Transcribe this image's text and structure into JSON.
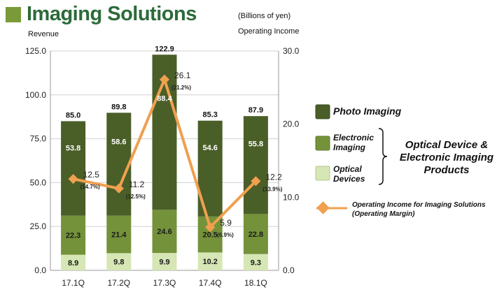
{
  "title": "Imaging Solutions",
  "units_note": "(Billions of yen)",
  "left_axis_label": "Revenue",
  "right_axis_label": "Operating Income",
  "colors": {
    "title": "#2c6b3a",
    "photo_imaging": "#4a5e28",
    "electronic_imaging": "#74923a",
    "optical_devices": "#d6e6b4",
    "operating_income": "#f0a050"
  },
  "legend": {
    "photo_imaging": "Photo Imaging",
    "electronic_imaging_line1": "Electronic",
    "electronic_imaging_line2": "Imaging",
    "optical_devices_line1": "Optical",
    "optical_devices_line2": "Devices",
    "group_line1": "Optical Device &",
    "group_line2": "Electronic Imaging",
    "group_line3": "Products",
    "op_line1": "Operating Income for Imaging Solutions",
    "op_line2": "(Operating Margin)"
  },
  "chart_data": {
    "type": "bar",
    "stacked": true,
    "categories": [
      "17.1Q",
      "17.2Q",
      "17.3Q",
      "17.4Q",
      "18.1Q"
    ],
    "series": [
      {
        "name": "Optical Devices",
        "values": [
          8.9,
          9.8,
          9.9,
          10.2,
          9.3
        ]
      },
      {
        "name": "Electronic Imaging",
        "values": [
          22.3,
          21.4,
          24.6,
          20.5,
          22.8
        ]
      },
      {
        "name": "Photo Imaging",
        "values": [
          53.8,
          58.6,
          88.4,
          54.6,
          55.8
        ]
      }
    ],
    "totals": [
      85.0,
      89.8,
      122.9,
      85.3,
      87.9
    ],
    "totals_labels": [
      "85.0",
      "89.8",
      "122.9",
      "85.3",
      "87.9"
    ],
    "line_series": {
      "name": "Operating Income for Imaging Solutions",
      "values": [
        12.5,
        11.2,
        26.1,
        5.9,
        12.2
      ],
      "labels": [
        "12.5",
        "11.2",
        "26.1",
        "5.9",
        "12.2"
      ],
      "margins": [
        "(14.7%)",
        "(12.5%)",
        "(21.2%)",
        "(6.9%)",
        "(13.9%)"
      ]
    },
    "y_left": {
      "min": 0,
      "max": 125,
      "ticks": [
        "0.0",
        "25.0",
        "50.0",
        "75.0",
        "100.0",
        "125.0"
      ]
    },
    "y_right": {
      "min": 0,
      "max": 30,
      "ticks": [
        "0.0",
        "10.0",
        "20.0",
        "30.0"
      ]
    }
  }
}
